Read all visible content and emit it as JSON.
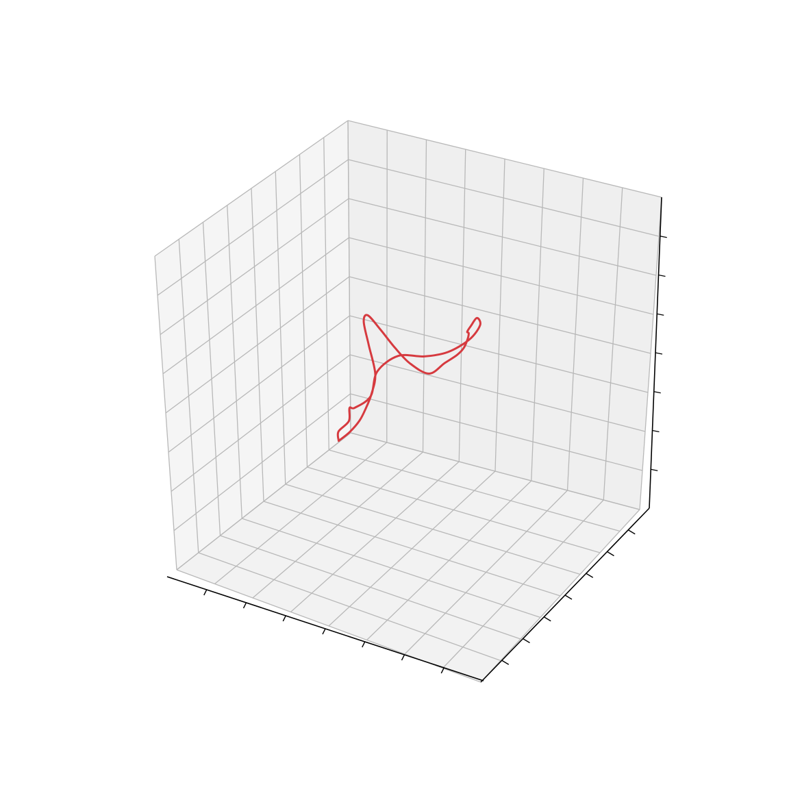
{
  "chart_data": {
    "type": "line3d",
    "title": "",
    "xlabel": "",
    "ylabel": "",
    "zlabel": "",
    "grid": true,
    "tick_labels_shown": false,
    "pane_colors": {
      "left_wall": "#f5f5f5",
      "back_wall": "#efefef",
      "floor": "#f2f2f2"
    },
    "colors": {
      "line": "#d63a3f",
      "grid": "#b8b8b8",
      "axis": "#000000"
    },
    "line_width": 3,
    "series": [
      {
        "points": [
          [
            -0.09,
            -0.23,
            -0.06
          ],
          [
            -0.07,
            -0.26,
            -0.01
          ],
          [
            -0.02,
            -0.28,
            0.05
          ],
          [
            0.01,
            -0.32,
            0.12
          ],
          [
            0.04,
            -0.34,
            0.14
          ],
          [
            0.09,
            -0.33,
            0.19
          ],
          [
            0.1,
            -0.3,
            0.26
          ],
          [
            0.15,
            -0.26,
            0.31
          ],
          [
            0.2,
            -0.2,
            0.3
          ],
          [
            0.25,
            -0.15,
            0.31
          ],
          [
            0.3,
            -0.11,
            0.35
          ],
          [
            0.34,
            -0.11,
            0.41
          ],
          [
            0.35,
            -0.14,
            0.45
          ],
          [
            0.34,
            -0.16,
            0.43
          ],
          [
            0.32,
            -0.15,
            0.4
          ],
          [
            0.3,
            -0.11,
            0.37
          ],
          [
            0.25,
            -0.04,
            0.3
          ],
          [
            0.18,
            0.05,
            0.21
          ],
          [
            0.1,
            0.14,
            0.12
          ],
          [
            0.02,
            0.2,
            0.04
          ],
          [
            -0.06,
            0.24,
            -0.04
          ],
          [
            -0.14,
            0.27,
            -0.05
          ],
          [
            -0.2,
            0.29,
            -0.03
          ],
          [
            -0.24,
            0.28,
            0.02
          ],
          [
            -0.26,
            0.25,
            0.07
          ],
          [
            -0.25,
            0.21,
            0.07
          ],
          [
            -0.22,
            0.18,
            0.02
          ],
          [
            -0.18,
            0.14,
            -0.04
          ],
          [
            -0.16,
            0.08,
            -0.07
          ],
          [
            -0.14,
            0.01,
            -0.08
          ],
          [
            -0.12,
            -0.06,
            -0.08
          ],
          [
            -0.1,
            -0.15,
            -0.07
          ],
          [
            -0.09,
            -0.23,
            -0.06
          ]
        ]
      }
    ]
  }
}
